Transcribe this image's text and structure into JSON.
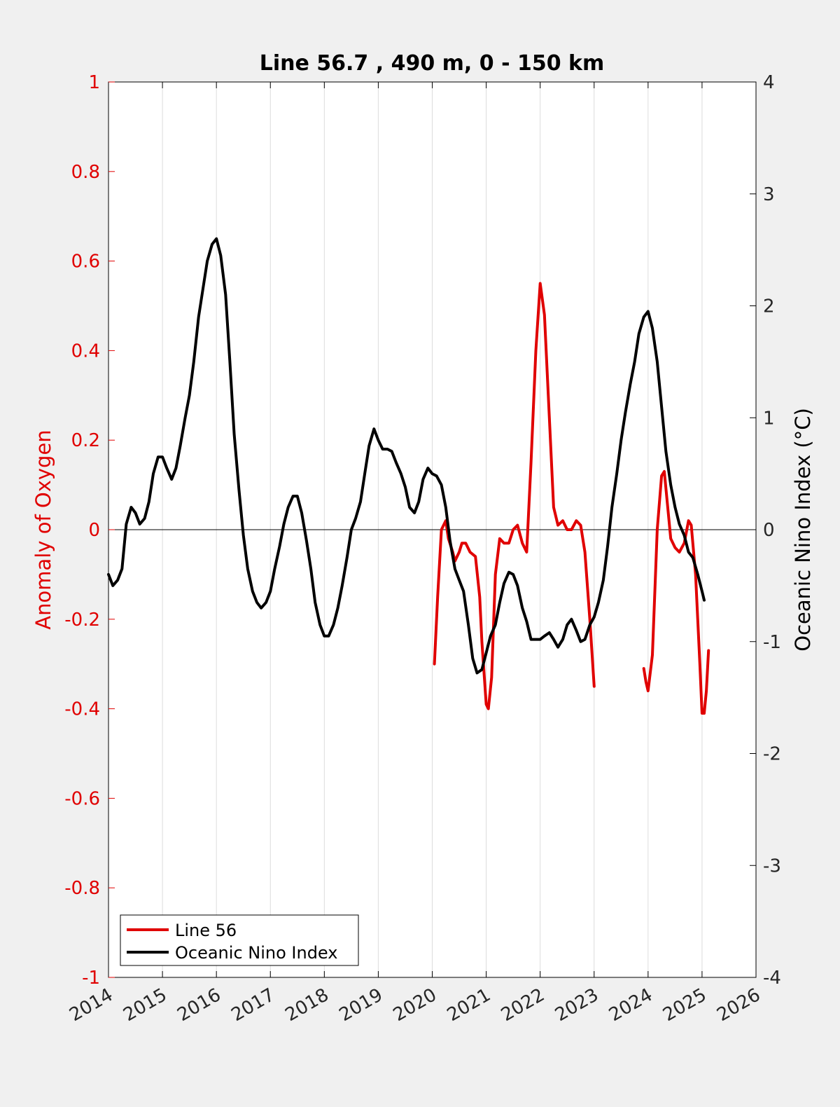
{
  "chart_data": {
    "type": "line",
    "title": "Line 56.7 , 490 m, 0 - 150 km",
    "xlabel": "",
    "ylabel_left": "Anomaly of Oxygen",
    "ylabel_right": "Oceanic Nino Index (°C)",
    "xlim": [
      2014,
      2026
    ],
    "ylim_left": [
      -1,
      1
    ],
    "ylim_right": [
      -4,
      4
    ],
    "x_ticks": [
      "2014",
      "2015",
      "2016",
      "2017",
      "2018",
      "2019",
      "2020",
      "2021",
      "2022",
      "2023",
      "2024",
      "2025",
      "2026"
    ],
    "y_left_ticks": [
      "1",
      "0.8",
      "0.6",
      "0.4",
      "0.2",
      "0",
      "-0.2",
      "-0.4",
      "-0.6",
      "-0.8",
      "-1"
    ],
    "y_right_ticks": [
      "4",
      "3",
      "2",
      "1",
      "0",
      "-1",
      "-2",
      "-3",
      "-4"
    ],
    "grid": "vertical",
    "zero_line": true,
    "legend_position": "bottom-left",
    "colors": {
      "line56": "#e00000",
      "oni": "#000000",
      "left_axis": "#e00000",
      "right_axis": "#000000"
    },
    "series": [
      {
        "name": "Line 56",
        "axis": "left",
        "color": "#e00000",
        "segments": [
          [
            [
              2020.04,
              -0.3
            ],
            [
              2020.1,
              -0.15
            ],
            [
              2020.17,
              0.0
            ],
            [
              2020.25,
              0.02
            ],
            [
              2020.3,
              -0.02
            ],
            [
              2020.38,
              -0.05
            ],
            [
              2020.42,
              -0.07
            ],
            [
              2020.5,
              -0.05
            ],
            [
              2020.55,
              -0.03
            ],
            [
              2020.62,
              -0.03
            ],
            [
              2020.7,
              -0.05
            ],
            [
              2020.8,
              -0.06
            ],
            [
              2020.88,
              -0.15
            ],
            [
              2020.92,
              -0.25
            ],
            [
              2021.0,
              -0.39
            ],
            [
              2021.04,
              -0.4
            ],
            [
              2021.1,
              -0.33
            ],
            [
              2021.17,
              -0.1
            ],
            [
              2021.25,
              -0.02
            ],
            [
              2021.33,
              -0.03
            ],
            [
              2021.42,
              -0.03
            ],
            [
              2021.5,
              0.0
            ],
            [
              2021.58,
              0.01
            ],
            [
              2021.67,
              -0.03
            ],
            [
              2021.75,
              -0.05
            ],
            [
              2021.83,
              0.15
            ],
            [
              2021.92,
              0.4
            ],
            [
              2022.0,
              0.55
            ],
            [
              2022.08,
              0.48
            ],
            [
              2022.17,
              0.25
            ],
            [
              2022.25,
              0.05
            ],
            [
              2022.33,
              0.01
            ],
            [
              2022.42,
              0.02
            ],
            [
              2022.5,
              0.0
            ],
            [
              2022.58,
              0.0
            ],
            [
              2022.67,
              0.02
            ],
            [
              2022.75,
              0.01
            ],
            [
              2022.83,
              -0.05
            ],
            [
              2022.92,
              -0.2
            ],
            [
              2023.0,
              -0.35
            ]
          ],
          [
            [
              2023.92,
              -0.31
            ],
            [
              2023.96,
              -0.34
            ],
            [
              2024.0,
              -0.36
            ],
            [
              2024.08,
              -0.28
            ],
            [
              2024.17,
              0.0
            ],
            [
              2024.25,
              0.12
            ],
            [
              2024.3,
              0.13
            ],
            [
              2024.42,
              -0.02
            ],
            [
              2024.5,
              -0.04
            ],
            [
              2024.58,
              -0.05
            ],
            [
              2024.67,
              -0.03
            ],
            [
              2024.75,
              0.02
            ],
            [
              2024.8,
              0.01
            ],
            [
              2024.88,
              -0.1
            ],
            [
              2024.96,
              -0.3
            ],
            [
              2025.0,
              -0.41
            ],
            [
              2025.04,
              -0.41
            ],
            [
              2025.08,
              -0.36
            ],
            [
              2025.12,
              -0.27
            ]
          ]
        ]
      },
      {
        "name": "Oceanic Nino Index",
        "axis": "right",
        "color": "#000000",
        "segments": [
          [
            [
              2014.0,
              -0.4
            ],
            [
              2014.08,
              -0.5
            ],
            [
              2014.17,
              -0.45
            ],
            [
              2014.25,
              -0.35
            ],
            [
              2014.33,
              0.05
            ],
            [
              2014.42,
              0.2
            ],
            [
              2014.5,
              0.15
            ],
            [
              2014.58,
              0.05
            ],
            [
              2014.67,
              0.1
            ],
            [
              2014.75,
              0.25
            ],
            [
              2014.83,
              0.5
            ],
            [
              2014.92,
              0.65
            ],
            [
              2015.0,
              0.65
            ],
            [
              2015.08,
              0.55
            ],
            [
              2015.17,
              0.45
            ],
            [
              2015.25,
              0.55
            ],
            [
              2015.33,
              0.75
            ],
            [
              2015.42,
              1.0
            ],
            [
              2015.5,
              1.2
            ],
            [
              2015.58,
              1.5
            ],
            [
              2015.67,
              1.9
            ],
            [
              2015.75,
              2.15
            ],
            [
              2015.83,
              2.4
            ],
            [
              2015.92,
              2.55
            ],
            [
              2016.0,
              2.6
            ],
            [
              2016.08,
              2.45
            ],
            [
              2016.17,
              2.1
            ],
            [
              2016.25,
              1.5
            ],
            [
              2016.33,
              0.85
            ],
            [
              2016.42,
              0.35
            ],
            [
              2016.5,
              -0.05
            ],
            [
              2016.58,
              -0.35
            ],
            [
              2016.67,
              -0.55
            ],
            [
              2016.75,
              -0.65
            ],
            [
              2016.83,
              -0.7
            ],
            [
              2016.92,
              -0.65
            ],
            [
              2017.0,
              -0.55
            ],
            [
              2017.08,
              -0.35
            ],
            [
              2017.17,
              -0.15
            ],
            [
              2017.25,
              0.05
            ],
            [
              2017.33,
              0.2
            ],
            [
              2017.42,
              0.3
            ],
            [
              2017.5,
              0.3
            ],
            [
              2017.58,
              0.15
            ],
            [
              2017.67,
              -0.1
            ],
            [
              2017.75,
              -0.35
            ],
            [
              2017.83,
              -0.65
            ],
            [
              2017.92,
              -0.85
            ],
            [
              2018.0,
              -0.95
            ],
            [
              2018.08,
              -0.95
            ],
            [
              2018.17,
              -0.85
            ],
            [
              2018.25,
              -0.7
            ],
            [
              2018.33,
              -0.5
            ],
            [
              2018.42,
              -0.25
            ],
            [
              2018.5,
              0.0
            ],
            [
              2018.58,
              0.1
            ],
            [
              2018.67,
              0.25
            ],
            [
              2018.75,
              0.5
            ],
            [
              2018.83,
              0.75
            ],
            [
              2018.92,
              0.9
            ],
            [
              2019.0,
              0.8
            ],
            [
              2019.08,
              0.72
            ],
            [
              2019.17,
              0.72
            ],
            [
              2019.25,
              0.7
            ],
            [
              2019.33,
              0.6
            ],
            [
              2019.42,
              0.5
            ],
            [
              2019.5,
              0.38
            ],
            [
              2019.58,
              0.2
            ],
            [
              2019.67,
              0.15
            ],
            [
              2019.75,
              0.25
            ],
            [
              2019.83,
              0.45
            ],
            [
              2019.92,
              0.55
            ],
            [
              2020.0,
              0.5
            ],
            [
              2020.08,
              0.48
            ],
            [
              2020.17,
              0.4
            ],
            [
              2020.25,
              0.2
            ],
            [
              2020.33,
              -0.1
            ],
            [
              2020.42,
              -0.35
            ],
            [
              2020.5,
              -0.45
            ],
            [
              2020.58,
              -0.55
            ],
            [
              2020.67,
              -0.85
            ],
            [
              2020.75,
              -1.15
            ],
            [
              2020.83,
              -1.28
            ],
            [
              2020.92,
              -1.25
            ],
            [
              2021.0,
              -1.1
            ],
            [
              2021.08,
              -0.95
            ],
            [
              2021.17,
              -0.85
            ],
            [
              2021.25,
              -0.65
            ],
            [
              2021.33,
              -0.48
            ],
            [
              2021.42,
              -0.38
            ],
            [
              2021.5,
              -0.4
            ],
            [
              2021.58,
              -0.5
            ],
            [
              2021.67,
              -0.7
            ],
            [
              2021.75,
              -0.82
            ],
            [
              2021.83,
              -0.98
            ],
            [
              2021.92,
              -0.98
            ],
            [
              2022.0,
              -0.98
            ],
            [
              2022.08,
              -0.95
            ],
            [
              2022.17,
              -0.92
            ],
            [
              2022.25,
              -0.98
            ],
            [
              2022.33,
              -1.05
            ],
            [
              2022.42,
              -0.98
            ],
            [
              2022.5,
              -0.85
            ],
            [
              2022.58,
              -0.8
            ],
            [
              2022.67,
              -0.9
            ],
            [
              2022.75,
              -1.0
            ],
            [
              2022.83,
              -0.98
            ],
            [
              2022.92,
              -0.85
            ],
            [
              2023.0,
              -0.78
            ],
            [
              2023.08,
              -0.65
            ],
            [
              2023.17,
              -0.45
            ],
            [
              2023.25,
              -0.15
            ],
            [
              2023.33,
              0.2
            ],
            [
              2023.42,
              0.5
            ],
            [
              2023.5,
              0.8
            ],
            [
              2023.58,
              1.05
            ],
            [
              2023.67,
              1.3
            ],
            [
              2023.75,
              1.5
            ],
            [
              2023.83,
              1.75
            ],
            [
              2023.92,
              1.9
            ],
            [
              2024.0,
              1.95
            ],
            [
              2024.08,
              1.8
            ],
            [
              2024.17,
              1.5
            ],
            [
              2024.25,
              1.1
            ],
            [
              2024.33,
              0.7
            ],
            [
              2024.42,
              0.4
            ],
            [
              2024.5,
              0.2
            ],
            [
              2024.58,
              0.05
            ],
            [
              2024.67,
              -0.05
            ],
            [
              2024.75,
              -0.2
            ],
            [
              2024.83,
              -0.25
            ],
            [
              2024.92,
              -0.4
            ],
            [
              2025.0,
              -0.55
            ],
            [
              2025.04,
              -0.63
            ]
          ]
        ]
      }
    ]
  },
  "legend": {
    "items": [
      {
        "label": "Line 56",
        "color": "#e00000"
      },
      {
        "label": "Oceanic Nino Index",
        "color": "#000000"
      }
    ]
  }
}
